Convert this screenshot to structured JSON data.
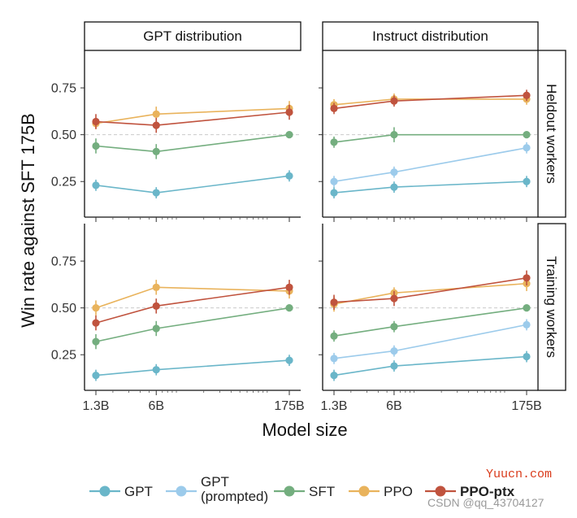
{
  "chart_data": {
    "type": "line",
    "ylabel": "Win rate against SFT 175B",
    "xlabel": "Model size",
    "x_scale": "log",
    "x_ticks": [
      "1.3B",
      "6B",
      "175B"
    ],
    "y_ticks": [
      "0.25",
      "0.50",
      "0.75"
    ],
    "ylim": [
      0.06,
      0.95
    ],
    "reference_line": 0.5,
    "columns": [
      "GPT distribution",
      "Instruct distribution"
    ],
    "rows": [
      "Heldout workers",
      "Training workers"
    ],
    "legend": [
      {
        "key": "GPT",
        "label": [
          "GPT"
        ],
        "color": "#6ab6c9"
      },
      {
        "key": "GPT_prompted",
        "label": [
          "GPT",
          "(prompted)"
        ],
        "color": "#9ccbeb"
      },
      {
        "key": "SFT",
        "label": [
          "SFT"
        ],
        "color": "#74ae7f"
      },
      {
        "key": "PPO",
        "label": [
          "PPO"
        ],
        "color": "#e9b35c"
      },
      {
        "key": "PPO_ptx",
        "label": [
          "PPO-ptx"
        ],
        "color": "#c0533e",
        "bold": true
      }
    ],
    "panels": [
      {
        "column": "GPT distribution",
        "row": "Heldout workers",
        "series": [
          {
            "key": "GPT",
            "x": [
              1.3,
              6,
              175
            ],
            "y": [
              0.23,
              0.19,
              0.28
            ],
            "err": [
              0.03,
              0.03,
              0.03
            ]
          },
          {
            "key": "SFT",
            "x": [
              1.3,
              6,
              175
            ],
            "y": [
              0.44,
              0.41,
              0.5
            ],
            "err": [
              0.04,
              0.04,
              0.01
            ]
          },
          {
            "key": "PPO",
            "x": [
              1.3,
              6,
              175
            ],
            "y": [
              0.56,
              0.61,
              0.64
            ],
            "err": [
              0.03,
              0.04,
              0.04
            ]
          },
          {
            "key": "PPO_ptx",
            "x": [
              1.3,
              6,
              175
            ],
            "y": [
              0.57,
              0.55,
              0.62
            ],
            "err": [
              0.04,
              0.04,
              0.04
            ]
          }
        ]
      },
      {
        "column": "Instruct distribution",
        "row": "Heldout workers",
        "series": [
          {
            "key": "GPT",
            "x": [
              1.3,
              6,
              175
            ],
            "y": [
              0.19,
              0.22,
              0.25
            ],
            "err": [
              0.03,
              0.03,
              0.03
            ]
          },
          {
            "key": "GPT_prompted",
            "x": [
              1.3,
              6,
              175
            ],
            "y": [
              0.25,
              0.3,
              0.43
            ],
            "err": [
              0.03,
              0.03,
              0.03
            ]
          },
          {
            "key": "SFT",
            "x": [
              1.3,
              6,
              175
            ],
            "y": [
              0.46,
              0.5,
              0.5
            ],
            "err": [
              0.03,
              0.04,
              0.01
            ]
          },
          {
            "key": "PPO",
            "x": [
              1.3,
              6,
              175
            ],
            "y": [
              0.66,
              0.69,
              0.69
            ],
            "err": [
              0.03,
              0.03,
              0.03
            ]
          },
          {
            "key": "PPO_ptx",
            "x": [
              1.3,
              6,
              175
            ],
            "y": [
              0.64,
              0.68,
              0.71
            ],
            "err": [
              0.03,
              0.03,
              0.03
            ]
          }
        ]
      },
      {
        "column": "GPT distribution",
        "row": "Training workers",
        "series": [
          {
            "key": "GPT",
            "x": [
              1.3,
              6,
              175
            ],
            "y": [
              0.14,
              0.17,
              0.22
            ],
            "err": [
              0.03,
              0.03,
              0.03
            ]
          },
          {
            "key": "SFT",
            "x": [
              1.3,
              6,
              175
            ],
            "y": [
              0.32,
              0.39,
              0.5
            ],
            "err": [
              0.04,
              0.04,
              0.01
            ]
          },
          {
            "key": "PPO",
            "x": [
              1.3,
              6,
              175
            ],
            "y": [
              0.5,
              0.61,
              0.59
            ],
            "err": [
              0.04,
              0.04,
              0.04
            ]
          },
          {
            "key": "PPO_ptx",
            "x": [
              1.3,
              6,
              175
            ],
            "y": [
              0.42,
              0.51,
              0.61
            ],
            "err": [
              0.04,
              0.04,
              0.04
            ]
          }
        ]
      },
      {
        "column": "Instruct distribution",
        "row": "Training workers",
        "series": [
          {
            "key": "GPT",
            "x": [
              1.3,
              6,
              175
            ],
            "y": [
              0.14,
              0.19,
              0.24
            ],
            "err": [
              0.03,
              0.03,
              0.03
            ]
          },
          {
            "key": "GPT_prompted",
            "x": [
              1.3,
              6,
              175
            ],
            "y": [
              0.23,
              0.27,
              0.41
            ],
            "err": [
              0.03,
              0.03,
              0.03
            ]
          },
          {
            "key": "SFT",
            "x": [
              1.3,
              6,
              175
            ],
            "y": [
              0.35,
              0.4,
              0.5
            ],
            "err": [
              0.03,
              0.03,
              0.01
            ]
          },
          {
            "key": "PPO",
            "x": [
              1.3,
              6,
              175
            ],
            "y": [
              0.52,
              0.58,
              0.63
            ],
            "err": [
              0.04,
              0.03,
              0.04
            ]
          },
          {
            "key": "PPO_ptx",
            "x": [
              1.3,
              6,
              175
            ],
            "y": [
              0.53,
              0.55,
              0.66
            ],
            "err": [
              0.04,
              0.04,
              0.04
            ]
          }
        ]
      }
    ]
  },
  "watermark": {
    "site": "Yuucn.com",
    "credit": "CSDN @qq_43704127"
  }
}
